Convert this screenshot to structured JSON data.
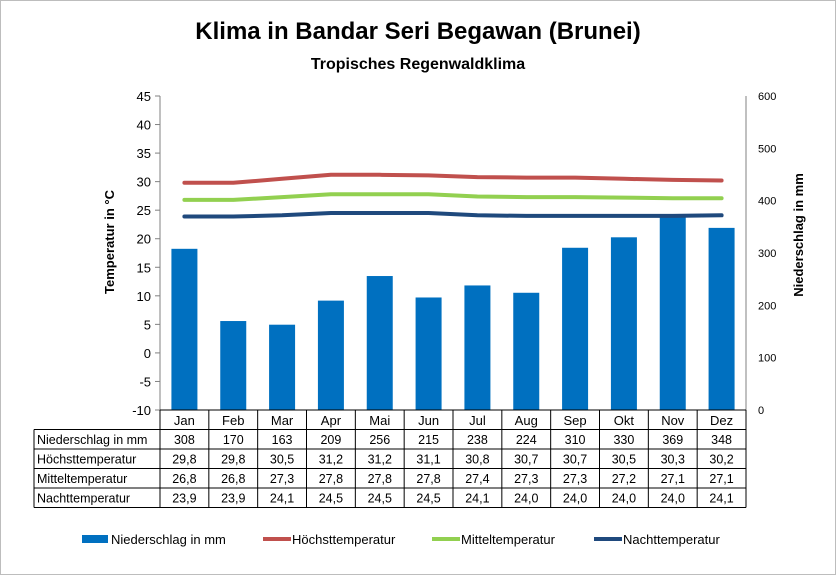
{
  "chart_data": {
    "type": "bar+line",
    "title": "Klima in Bandar Seri Begawan (Brunei)",
    "subtitle": "Tropisches Regenwaldklima",
    "ylabel_left": "Temperatur in °C",
    "ylabel_right": "Niederschlag in mm",
    "ylim_left": [
      -10,
      45
    ],
    "yticks_left": [
      "45",
      "40",
      "35",
      "30",
      "25",
      "20",
      "15",
      "10",
      "5",
      "0",
      "-5",
      "-10"
    ],
    "ylim_right": [
      0,
      600
    ],
    "yticks_right": [
      "600",
      "500",
      "400",
      "300",
      "200",
      "100",
      "0"
    ],
    "categories": [
      "Jan",
      "Feb",
      "Mar",
      "Apr",
      "Mai",
      "Jun",
      "Jul",
      "Aug",
      "Sep",
      "Okt",
      "Nov",
      "Dez"
    ],
    "bar_series": {
      "name": "Niederschlag in mm",
      "color": "#0070c0",
      "values": [
        308,
        170,
        163,
        209,
        256,
        215,
        238,
        224,
        310,
        330,
        369,
        348
      ],
      "display": [
        "308",
        "170",
        "163",
        "209",
        "256",
        "215",
        "238",
        "224",
        "310",
        "330",
        "369",
        "348"
      ]
    },
    "line_series": [
      {
        "name": "Höchsttemperatur",
        "color": "#c0504d",
        "values": [
          29.8,
          29.8,
          30.5,
          31.2,
          31.2,
          31.1,
          30.8,
          30.7,
          30.7,
          30.5,
          30.3,
          30.2
        ],
        "display": [
          "29,8",
          "29,8",
          "30,5",
          "31,2",
          "31,2",
          "31,1",
          "30,8",
          "30,7",
          "30,7",
          "30,5",
          "30,3",
          "30,2"
        ]
      },
      {
        "name": "Mitteltemperatur",
        "color": "#92d050",
        "values": [
          26.8,
          26.8,
          27.3,
          27.8,
          27.8,
          27.8,
          27.4,
          27.3,
          27.3,
          27.2,
          27.1,
          27.1
        ],
        "display": [
          "26,8",
          "26,8",
          "27,3",
          "27,8",
          "27,8",
          "27,8",
          "27,4",
          "27,3",
          "27,3",
          "27,2",
          "27,1",
          "27,1"
        ]
      },
      {
        "name": "Nachttemperatur",
        "color": "#1f497d",
        "values": [
          23.9,
          23.9,
          24.1,
          24.5,
          24.5,
          24.5,
          24.1,
          24.0,
          24.0,
          24.0,
          24.0,
          24.1
        ],
        "display": [
          "23,9",
          "23,9",
          "24,1",
          "24,5",
          "24,5",
          "24,5",
          "24,1",
          "24,0",
          "24,0",
          "24,0",
          "24,0",
          "24,1"
        ]
      }
    ],
    "legend_position": "bottom",
    "grid": false
  }
}
